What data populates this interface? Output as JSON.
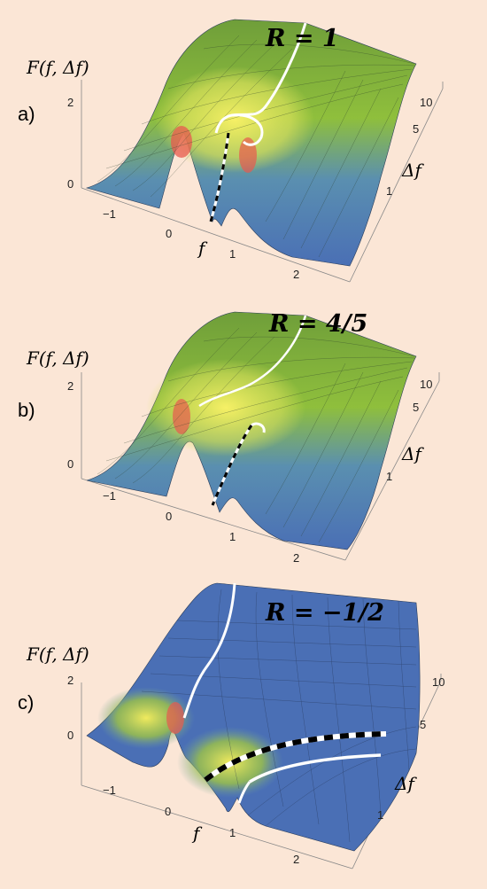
{
  "panels": [
    {
      "label": "a)",
      "title": "R = 1",
      "z_axis_label": "F(f, Δf)",
      "z_ticks": [
        "2",
        "0"
      ],
      "f_axis_label": "f",
      "f_ticks": [
        "−1",
        "0",
        "1",
        "2"
      ],
      "df_axis_label": "Δf",
      "df_ticks": [
        "10",
        "5",
        "1"
      ]
    },
    {
      "label": "b)",
      "title": "R = 4/5",
      "z_axis_label": "F(f, Δf)",
      "z_ticks": [
        "2",
        "0"
      ],
      "f_axis_label": "",
      "f_ticks": [
        "−1",
        "0",
        "1",
        "2"
      ],
      "df_axis_label": "Δf",
      "df_ticks": [
        "10",
        "5",
        "1"
      ]
    },
    {
      "label": "c)",
      "title": "R = −1/2",
      "z_axis_label": "F(f, Δf)",
      "z_ticks": [
        "2",
        "0"
      ],
      "f_axis_label": "f",
      "f_ticks": [
        "−1",
        "0",
        "1",
        "2"
      ],
      "df_axis_label": "Δf",
      "df_ticks": [
        "10",
        "5",
        "1"
      ]
    }
  ],
  "colors": {
    "background": "#fbe6d6",
    "surface_low": "#4a6fb5",
    "surface_mid": "#8fbf3c",
    "surface_high": "#f4ee63",
    "surface_peak": "#e85a4f",
    "curve": "#ffffff",
    "curve_dash": "#000000"
  }
}
